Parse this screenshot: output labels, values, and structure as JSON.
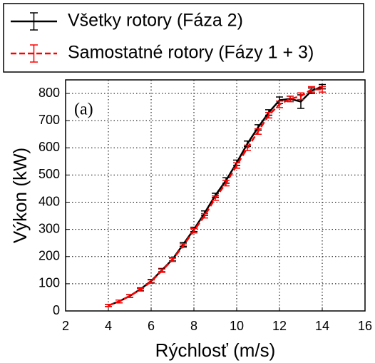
{
  "chart_data": {
    "type": "line",
    "xlabel": "Rýchlosť (m/s)",
    "ylabel": "Výkon (kW)",
    "annotation": "(a)",
    "x": [
      4,
      4.5,
      5,
      5.5,
      6,
      6.5,
      7,
      7.5,
      8,
      8.5,
      9,
      9.5,
      10,
      10.5,
      11,
      11.5,
      12,
      12.5,
      13,
      13.5,
      14
    ],
    "series": [
      {
        "name": "Všetky rotory (Fáza 2)",
        "color": "#000000",
        "dash": false,
        "values": [
          20,
          35,
          55,
          80,
          110,
          150,
          190,
          245,
          300,
          360,
          425,
          480,
          545,
          615,
          675,
          730,
          775,
          780,
          770,
          810,
          825
        ],
        "errors": [
          4,
          5,
          5,
          5,
          6,
          6,
          6,
          7,
          8,
          8,
          8,
          10,
          10,
          10,
          10,
          10,
          12,
          10,
          25,
          10,
          8
        ]
      },
      {
        "name": "Samostatné rotory (Fázy 1 + 3)",
        "color": "#ff0000",
        "dash": true,
        "values": [
          20,
          35,
          55,
          78,
          108,
          148,
          188,
          240,
          295,
          350,
          415,
          470,
          535,
          600,
          660,
          720,
          760,
          780,
          790,
          815,
          815
        ],
        "errors": [
          4,
          5,
          5,
          5,
          6,
          6,
          6,
          7,
          8,
          8,
          8,
          10,
          10,
          10,
          10,
          10,
          12,
          10,
          12,
          10,
          10
        ]
      }
    ],
    "xlim": [
      2,
      16
    ],
    "xticks": [
      2,
      4,
      6,
      8,
      10,
      12,
      14,
      16
    ],
    "ylim": [
      0,
      850
    ],
    "yticks": [
      0,
      100,
      200,
      300,
      400,
      500,
      600,
      700,
      800
    ],
    "grid": true,
    "legend": "top"
  }
}
